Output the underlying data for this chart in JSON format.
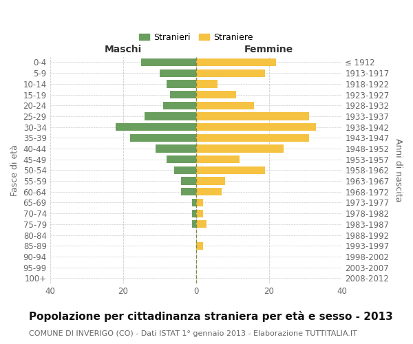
{
  "age_groups": [
    "0-4",
    "5-9",
    "10-14",
    "15-19",
    "20-24",
    "25-29",
    "30-34",
    "35-39",
    "40-44",
    "45-49",
    "50-54",
    "55-59",
    "60-64",
    "65-69",
    "70-74",
    "75-79",
    "80-84",
    "85-89",
    "90-94",
    "95-99",
    "100+"
  ],
  "birth_years": [
    "2008-2012",
    "2003-2007",
    "1998-2002",
    "1993-1997",
    "1988-1992",
    "1983-1987",
    "1978-1982",
    "1973-1977",
    "1968-1972",
    "1963-1967",
    "1958-1962",
    "1953-1957",
    "1948-1952",
    "1943-1947",
    "1938-1942",
    "1933-1937",
    "1928-1932",
    "1923-1927",
    "1918-1922",
    "1913-1917",
    "≤ 1912"
  ],
  "males": [
    15,
    10,
    8,
    7,
    9,
    14,
    22,
    18,
    11,
    8,
    6,
    4,
    4,
    1,
    1,
    1,
    0,
    0,
    0,
    0,
    0
  ],
  "females": [
    22,
    19,
    6,
    11,
    16,
    31,
    33,
    31,
    24,
    12,
    19,
    8,
    7,
    2,
    2,
    3,
    0,
    2,
    0,
    0,
    0
  ],
  "male_color": "#6a9e5e",
  "female_color": "#f5c242",
  "background_color": "#ffffff",
  "grid_color": "#cccccc",
  "text_color": "#666666",
  "title": "Popolazione per cittadinanza straniera per età e sesso - 2013",
  "subtitle": "COMUNE DI INVERIGO (CO) - Dati ISTAT 1° gennaio 2013 - Elaborazione TUTTITALIA.IT",
  "xlabel_left": "Maschi",
  "xlabel_right": "Femmine",
  "ylabel_left": "Fasce di età",
  "ylabel_right": "Anni di nascita",
  "legend_male": "Stranieri",
  "legend_female": "Straniere",
  "xlim": 40,
  "title_fontsize": 11,
  "subtitle_fontsize": 8,
  "tick_fontsize": 8.5
}
